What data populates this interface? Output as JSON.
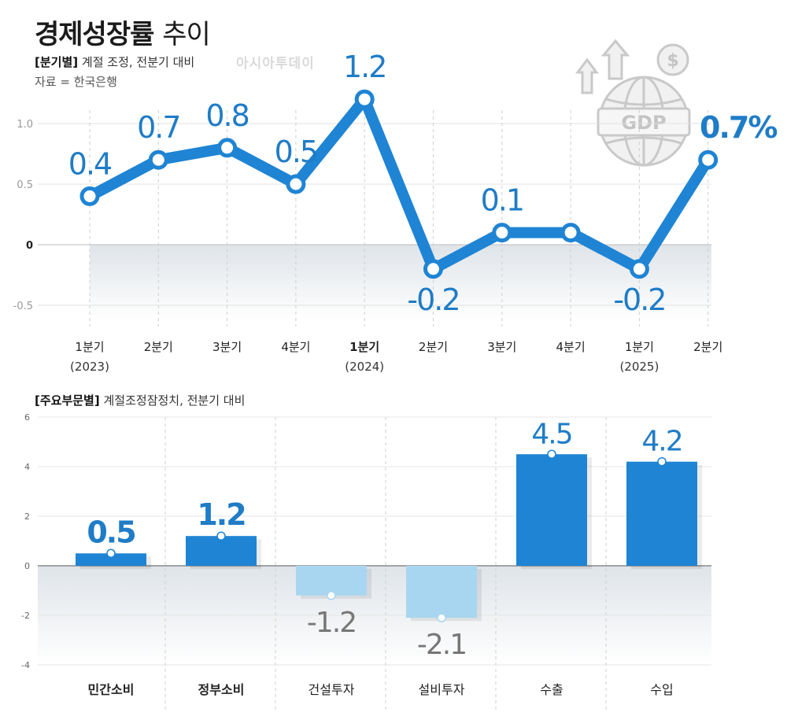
{
  "header": {
    "title_bold": "경제성장률",
    "title_rest": "추이",
    "subtitle_tag": "[분기별]",
    "subtitle_text": "계절 조정, 전분기 대비",
    "source": "자료 = 한국은행",
    "watermark": "아시아투데이"
  },
  "icon": {
    "name": "gdp-globe-icon",
    "label": "GDP",
    "symbol": "$"
  },
  "chart_data": [
    {
      "type": "line",
      "categories": [
        "1분기",
        "2분기",
        "3분기",
        "4분기",
        "1분기",
        "2분기",
        "3분기",
        "4분기",
        "1분기",
        "2분기"
      ],
      "category_years": [
        "(2023)",
        "",
        "",
        "",
        "(2024)",
        "",
        "",
        "",
        "(2025)",
        ""
      ],
      "bold_categories": [
        4
      ],
      "values": [
        0.4,
        0.7,
        0.8,
        0.5,
        1.2,
        -0.2,
        0.1,
        0.1,
        -0.2,
        0.7
      ],
      "value_labels": [
        "0.4",
        "0.7",
        "0.8",
        "0.5",
        "1.2",
        "-0.2",
        "0.1",
        "",
        "-0.2",
        "0.7%"
      ],
      "yticks": [
        "1.0",
        "0.5",
        "0",
        "-0.5"
      ],
      "ytick_values": [
        1.0,
        0.5,
        0,
        -0.5
      ],
      "ylim": [
        -0.7,
        1.3
      ],
      "color": "#1f84d4"
    },
    {
      "type": "bar",
      "title_tag": "[주요부문별]",
      "title_text": "계절조정잠정치, 전분기 대비",
      "categories": [
        "민간소비",
        "정부소비",
        "건설투자",
        "설비투자",
        "수출",
        "수입"
      ],
      "bold_categories": [
        0,
        1
      ],
      "values": [
        0.5,
        1.2,
        -1.2,
        -2.1,
        4.5,
        4.2
      ],
      "value_labels": [
        "0.5",
        "1.2",
        "-1.2",
        "-2.1",
        "4.5",
        "4.2"
      ],
      "bold_labels": [
        0,
        1
      ],
      "yticks": [
        "6",
        "4",
        "2",
        "0",
        "-2",
        "-4"
      ],
      "ytick_values": [
        6,
        4,
        2,
        0,
        -2,
        -4
      ],
      "ylim": [
        -4,
        6
      ],
      "positive_color": "#1f84d4",
      "negative_color": "#a8d6f0"
    }
  ]
}
